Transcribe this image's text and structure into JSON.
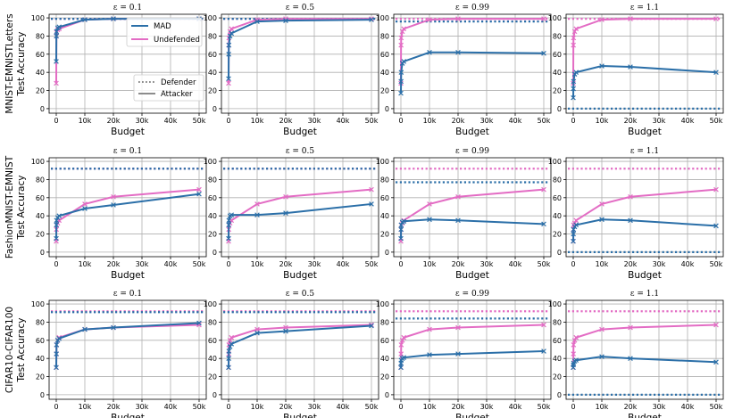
{
  "chart_data": {
    "type": "line",
    "x": [
      0,
      50,
      100,
      500,
      1000,
      10000,
      20000,
      50000
    ],
    "xticks": [
      0,
      10000,
      20000,
      30000,
      40000,
      50000
    ],
    "xtick_labels": [
      "0",
      "10k",
      "20k",
      "30k",
      "40k",
      "50k"
    ],
    "yticks": [
      0,
      20,
      40,
      60,
      80,
      100
    ],
    "ylim": [
      -5,
      104
    ],
    "xlim": [
      -2500,
      52500
    ],
    "xlabel": "Budget",
    "row_labels": [
      [
        "MNIST-EMNISTLetters",
        "Test Accuracy"
      ],
      [
        "FashionMNIST-EMNIST",
        "Test Accuracy"
      ],
      [
        "CIFAR10-CIFAR100",
        "Test Accuracy"
      ]
    ],
    "legend": {
      "series": [
        "MAD",
        "Undefended"
      ],
      "linestyles": [
        "Defender",
        "Attacker"
      ],
      "location": "right"
    },
    "colors": {
      "MAD": "#2b6fa8",
      "Undefended": "#e36cc4"
    },
    "panels": [
      [
        {
          "title": "ε = 0.1",
          "mad_defender": 99,
          "und_defender": 99,
          "mad_attacker": [
            52,
            80,
            85,
            89,
            90,
            98,
            99,
            99
          ],
          "und_attacker": [
            28,
            80,
            84,
            87,
            88,
            98,
            99,
            99
          ]
        },
        {
          "title": "ε = 0.5",
          "mad_defender": 99,
          "und_defender": 99,
          "mad_attacker": [
            33,
            60,
            70,
            80,
            83,
            96,
            97,
            98
          ],
          "und_attacker": [
            28,
            70,
            78,
            85,
            88,
            98,
            99,
            99
          ]
        },
        {
          "title": "ε = 0.99",
          "mad_defender": 96,
          "und_defender": 99,
          "mad_attacker": [
            17,
            30,
            40,
            50,
            52,
            62,
            62,
            61
          ],
          "und_attacker": [
            28,
            70,
            78,
            85,
            88,
            98,
            99,
            99
          ]
        },
        {
          "title": "ε = 1.1",
          "mad_defender": 0,
          "und_defender": 99,
          "mad_attacker": [
            12,
            22,
            30,
            38,
            40,
            47,
            46,
            40
          ],
          "und_attacker": [
            28,
            70,
            78,
            85,
            88,
            98,
            99,
            99
          ]
        }
      ],
      [
        {
          "title": "ε = 0.1",
          "mad_defender": 92,
          "und_defender": 92,
          "mad_attacker": [
            15,
            30,
            35,
            38,
            40,
            48,
            52,
            64
          ],
          "und_attacker": [
            12,
            25,
            30,
            32,
            35,
            53,
            61,
            69
          ]
        },
        {
          "title": "ε = 0.5",
          "mad_defender": 92,
          "und_defender": 92,
          "mad_attacker": [
            15,
            30,
            35,
            40,
            41,
            41,
            43,
            53
          ],
          "und_attacker": [
            12,
            25,
            30,
            32,
            35,
            53,
            61,
            69
          ]
        },
        {
          "title": "ε = 0.99",
          "mad_defender": 77,
          "und_defender": 92,
          "mad_attacker": [
            15,
            25,
            30,
            33,
            34,
            36,
            35,
            31
          ],
          "und_attacker": [
            12,
            25,
            30,
            32,
            35,
            53,
            61,
            69
          ]
        },
        {
          "title": "ε = 1.1",
          "mad_defender": 0,
          "und_defender": 92,
          "mad_attacker": [
            12,
            20,
            25,
            28,
            30,
            36,
            35,
            29
          ],
          "und_attacker": [
            12,
            25,
            30,
            32,
            35,
            53,
            61,
            69
          ]
        }
      ],
      [
        {
          "title": "ε = 0.1",
          "mad_defender": 91,
          "und_defender": 92,
          "mad_attacker": [
            30,
            45,
            55,
            60,
            62,
            72,
            74,
            79
          ],
          "und_attacker": [
            30,
            45,
            55,
            60,
            63,
            72,
            74,
            77
          ]
        },
        {
          "title": "ε = 0.5",
          "mad_defender": 91,
          "und_defender": 92,
          "mad_attacker": [
            30,
            40,
            48,
            53,
            56,
            68,
            70,
            76
          ],
          "und_attacker": [
            30,
            45,
            55,
            60,
            63,
            72,
            74,
            77
          ]
        },
        {
          "title": "ε = 0.99",
          "mad_defender": 84,
          "und_defender": 92,
          "mad_attacker": [
            30,
            35,
            38,
            40,
            41,
            44,
            45,
            48
          ],
          "und_attacker": [
            30,
            45,
            55,
            60,
            63,
            72,
            74,
            77
          ]
        },
        {
          "title": "ε = 1.1",
          "mad_defender": 0,
          "und_defender": 92,
          "mad_attacker": [
            30,
            33,
            35,
            37,
            38,
            42,
            40,
            36
          ],
          "und_attacker": [
            30,
            45,
            55,
            60,
            63,
            72,
            74,
            77
          ]
        }
      ]
    ]
  }
}
